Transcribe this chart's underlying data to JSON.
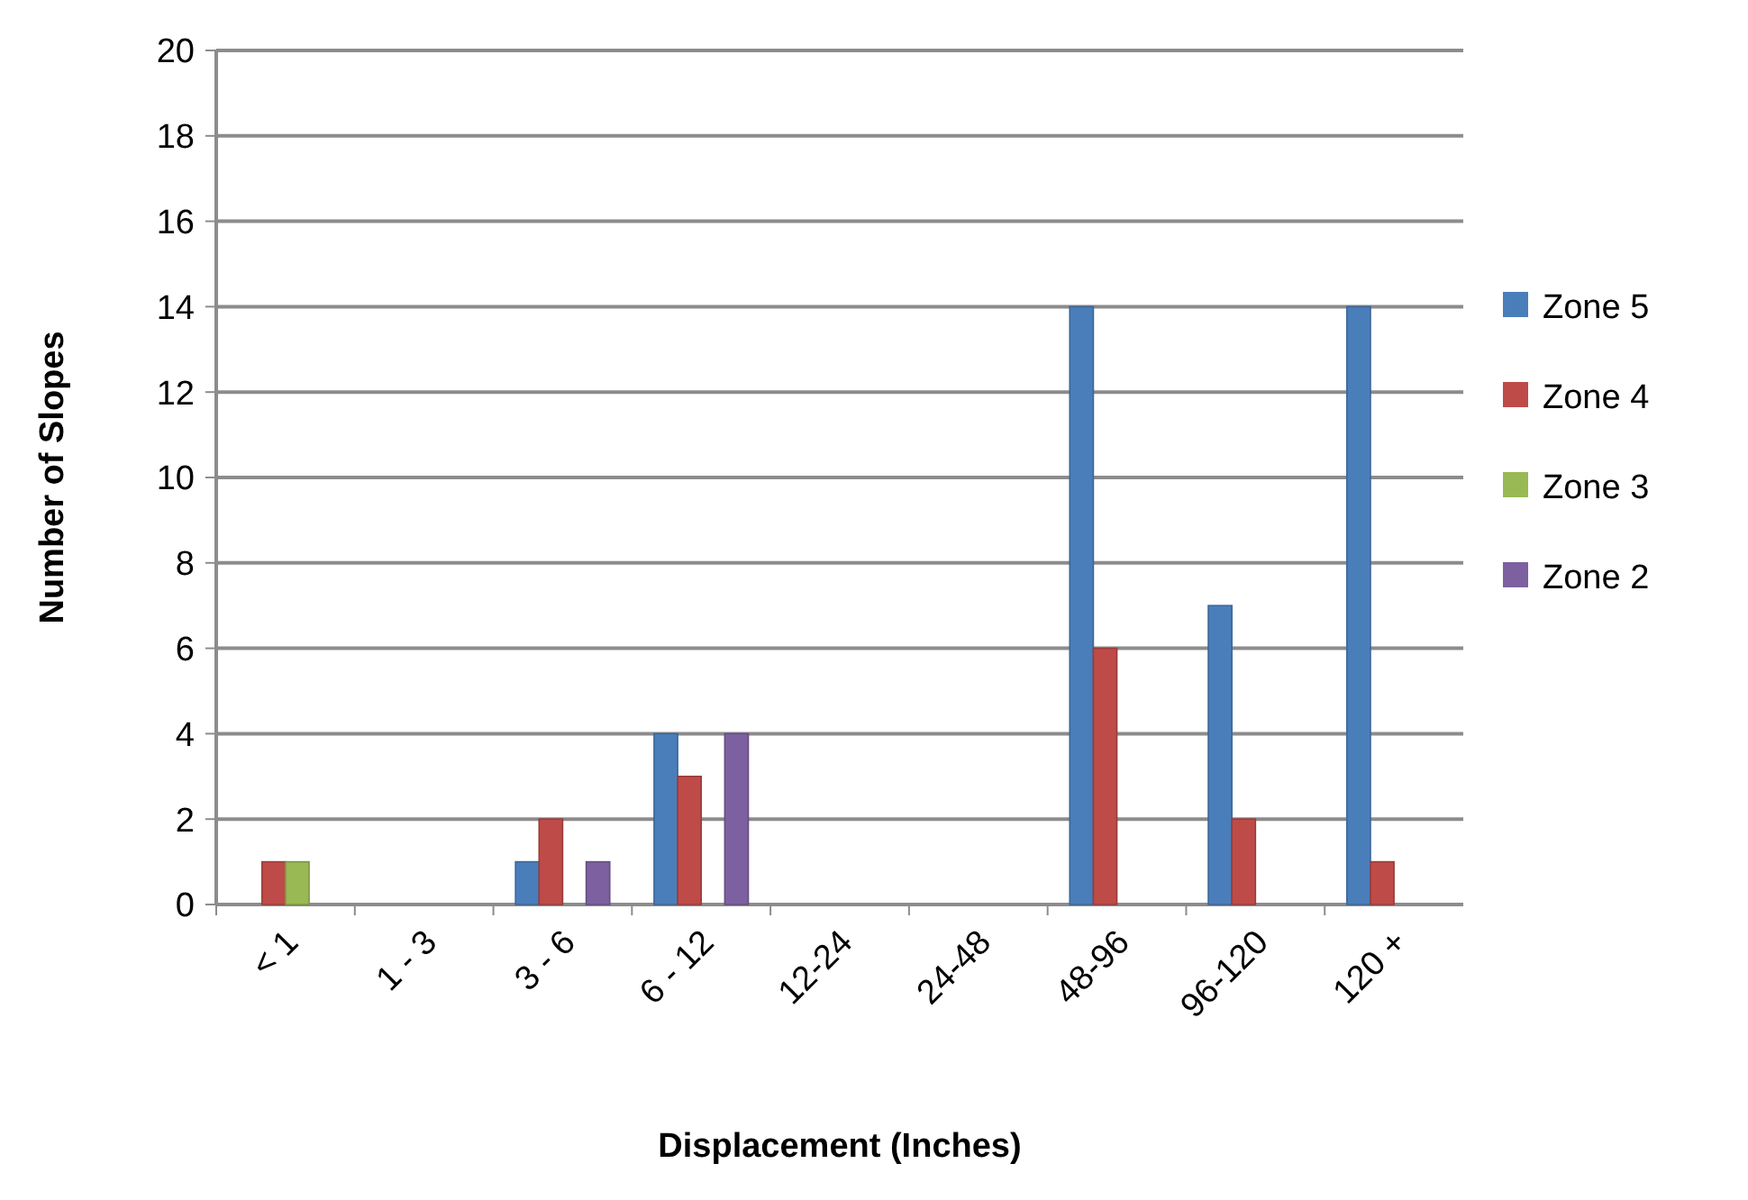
{
  "chart_data": {
    "type": "bar",
    "xlabel": "Displacement (Inches)",
    "ylabel": "Number of Slopes",
    "categories": [
      "< 1",
      "1 - 3",
      "3 - 6",
      "6 - 12",
      "12-24",
      "24-48",
      "48-96",
      "96-120",
      "120 +"
    ],
    "series": [
      {
        "name": "Zone 5",
        "color": "#4a7ebb",
        "values": [
          0,
          0,
          1,
          4,
          0,
          0,
          14,
          7,
          14
        ]
      },
      {
        "name": "Zone 4",
        "color": "#be4b48",
        "values": [
          1,
          0,
          2,
          3,
          0,
          0,
          6,
          2,
          1
        ]
      },
      {
        "name": "Zone 3",
        "color": "#98b954",
        "values": [
          1,
          0,
          0,
          0,
          0,
          0,
          0,
          0,
          0
        ]
      },
      {
        "name": "Zone 2",
        "color": "#7d60a0",
        "values": [
          0,
          0,
          1,
          4,
          0,
          0,
          0,
          0,
          0
        ]
      }
    ],
    "ylim": [
      0,
      20
    ],
    "yticks": [
      0,
      2,
      4,
      6,
      8,
      10,
      12,
      14,
      16,
      18,
      20
    ],
    "grid": "y",
    "legend": "right"
  }
}
